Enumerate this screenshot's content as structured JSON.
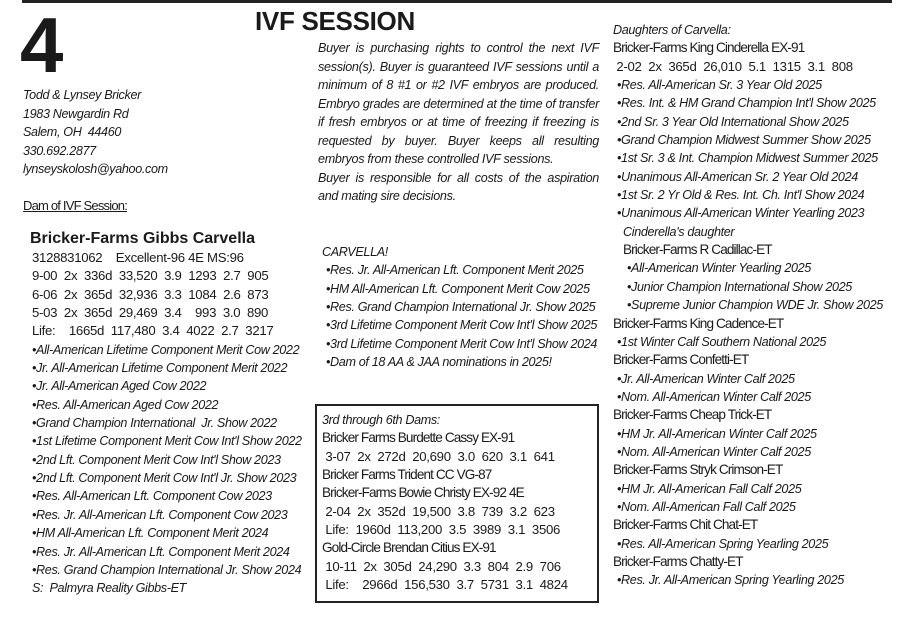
{
  "lot_number": "4",
  "title": "IVF SESSION",
  "consignor": {
    "lines": [
      "Todd & Lynsey Bricker",
      "1983 Newgardin Rd",
      "Salem, OH  44460",
      "330.692.2877",
      "lynseyskolosh@yahoo.com"
    ]
  },
  "dam_header": "Dam of IVF Session:",
  "dam": {
    "name": "Bricker-Farms Gibbs Carvella",
    "lines": [
      {
        "t": "3128831062    Excellent-96 4E MS:96",
        "c": "rec i1"
      },
      {
        "t": "9-00  2x  336d  33,520  3.9  1293  2.7  905",
        "c": "rec i1"
      },
      {
        "t": "6-06  2x  365d  32,936  3.3  1084  2.6  873",
        "c": "rec i1"
      },
      {
        "t": "5-03  2x  365d  29,469  3.4    993  3.0  890",
        "c": "rec i1"
      },
      {
        "t": "Life:    1665d  117,480  3.4  4022  2.7  3217",
        "c": "rec i1"
      },
      {
        "t": "•All-American Lifetime Component Merit Cow 2022",
        "c": "it i1"
      },
      {
        "t": "•Jr. All-American Lifetime Component Merit 2022",
        "c": "it i1"
      },
      {
        "t": "•Jr. All-American Aged Cow 2022",
        "c": "it i1"
      },
      {
        "t": "•Res. All-American Aged Cow 2022",
        "c": "it i1"
      },
      {
        "t": "•Grand Champion International  Jr. Show 2022",
        "c": "it i1"
      },
      {
        "t": "•1st Lifetime Component Merit Cow Int'l Show 2022",
        "c": "it i1"
      },
      {
        "t": "•2nd Lft. Component Merit Cow Int'l Show 2023",
        "c": "it i1"
      },
      {
        "t": "•2nd Lft. Component Merit Cow Int'l Jr. Show 2023",
        "c": "it i1"
      },
      {
        "t": "•Res. All-American Lft. Component Cow 2023",
        "c": "it i1"
      },
      {
        "t": "•Res. Jr. All-American Lft. Component Cow 2023",
        "c": "it i1"
      },
      {
        "t": "•HM All-American Lft. Component Merit 2024",
        "c": "it i1"
      },
      {
        "t": "•Res. Jr. All-American Lft. Component Merit 2024",
        "c": "it i1"
      },
      {
        "t": "•Res. Grand Champion International Jr. Show 2024",
        "c": "it i1"
      },
      {
        "t": "S:  Palmyra Reality Gibbs-ET",
        "c": "it i1"
      }
    ]
  },
  "terms": [
    "Buyer is purchasing rights to control the next IVF session(s). Buyer is guaranteed IVF sessions until a minimum of 8 #1 or #2 IVF embryos are produced. Embryo grades are determined at the time of transfer if fresh embryos or at time of freezing if freezing is requested by buyer. Buyer keeps all resulting embryos from these controlled IVF sessions.",
    "Buyer is responsible for all costs of the aspiration and mating sire decisions."
  ],
  "carvella": [
    {
      "t": "CARVELLA!",
      "c": "it"
    },
    {
      "t": "•Res. Jr. All-American Lft. Component Merit 2025",
      "c": "it i1"
    },
    {
      "t": "•HM All-American Lft. Component Merit Cow 2025",
      "c": "it i1"
    },
    {
      "t": "•Res. Grand Champion International Jr. Show 2025",
      "c": "it i1"
    },
    {
      "t": "•3rd Lifetime Component Merit Cow Int'l Show 2025",
      "c": "it i1"
    },
    {
      "t": "•3rd Lifetime Component Merit Cow Int'l Show 2024",
      "c": "it i1"
    },
    {
      "t": "•Dam of 18 AA & JAA nominations in 2025!",
      "c": "it i1"
    }
  ],
  "dams_box": [
    {
      "t": "3rd through 6th Dams:",
      "c": "it"
    },
    {
      "t": "Bricker Farms Burdette Cassy EX-91",
      "c": "nm"
    },
    {
      "t": " 3-07  2x  272d  20,690  3.0  620  3.1  641",
      "c": "rec"
    },
    {
      "t": "Bricker Farms Trident CC VG-87",
      "c": "nm"
    },
    {
      "t": "Bricker-Farms Bowie Christy EX-92 4E",
      "c": "nm"
    },
    {
      "t": " 2-04  2x  352d  19,500  3.8  739  3.2  623",
      "c": "rec"
    },
    {
      "t": " Life:  1960d  113,200  3.5  3989  3.1  3506",
      "c": "rec"
    },
    {
      "t": "Gold-Circle Brendan Citius EX-91",
      "c": "nm"
    },
    {
      "t": " 10-11  2x  305d  24,290  3.3  804  2.9  706",
      "c": "rec"
    },
    {
      "t": " Life:    2966d  156,530  3.7  5731  3.1  4824",
      "c": "rec"
    }
  ],
  "daughters": [
    {
      "t": "Daughters of Carvella:",
      "c": "it"
    },
    {
      "t": "Bricker-Farms King Cinderella EX-91",
      "c": "nm"
    },
    {
      "t": " 2-02  2x  365d  26,010  5.1  1315  3.1  808",
      "c": "rec"
    },
    {
      "t": "•Res. All-American Sr. 3 Year Old 2025",
      "c": "it i1"
    },
    {
      "t": "•Res. Int. & HM Grand Champion Int'l Show 2025",
      "c": "it i1"
    },
    {
      "t": "•2nd Sr. 3 Year Old International Show 2025",
      "c": "it i1"
    },
    {
      "t": "•Grand Champion Midwest Summer Show 2025",
      "c": "it i1"
    },
    {
      "t": "•1st Sr. 3 & Int. Champion Midwest Summer 2025",
      "c": "it i1"
    },
    {
      "t": "•Unanimous All-American Sr. 2 Year Old 2024",
      "c": "it i1"
    },
    {
      "t": "•1st Sr. 2 Yr Old & Res. Int. Ch. Int'l Show 2024",
      "c": "it i1"
    },
    {
      "t": "•Unanimous All-American Winter Yearling 2023",
      "c": "it i1"
    },
    {
      "t": "Cinderella's daughter",
      "c": "it i2"
    },
    {
      "t": "Bricker-Farms R Cadillac-ET",
      "c": "nm i2"
    },
    {
      "t": "•All-American Winter Yearling 2025",
      "c": "it i3"
    },
    {
      "t": "•Junior Champion International Show 2025",
      "c": "it i3"
    },
    {
      "t": "•Supreme Junior Champion WDE Jr. Show 2025",
      "c": "it i3"
    },
    {
      "t": "Bricker-Farms King Cadence-ET",
      "c": "nm"
    },
    {
      "t": "•1st Winter Calf Southern National 2025",
      "c": "it i1"
    },
    {
      "t": "Bricker-Farms Confetti-ET",
      "c": "nm"
    },
    {
      "t": "•Jr. All-American Winter Calf 2025",
      "c": "it i1"
    },
    {
      "t": "•Nom. All-American Winter Calf 2025",
      "c": "it i1"
    },
    {
      "t": "Bricker-Farms Cheap Trick-ET",
      "c": "nm"
    },
    {
      "t": "•HM Jr. All-American Winter Calf 2025",
      "c": "it i1"
    },
    {
      "t": "•Nom. All-American Winter Calf 2025",
      "c": "it i1"
    },
    {
      "t": "Bricker-Farms Stryk Crimson-ET",
      "c": "nm"
    },
    {
      "t": "•HM Jr. All-American Fall Calf 2025",
      "c": "it i1"
    },
    {
      "t": "•Nom. All-American Fall Calf 2025",
      "c": "it i1"
    },
    {
      "t": "Bricker-Farms Chit Chat-ET",
      "c": "nm"
    },
    {
      "t": "•Res. All-American Spring Yearling 2025",
      "c": "it i1"
    },
    {
      "t": "Bricker-Farms Chatty-ET",
      "c": "nm"
    },
    {
      "t": "•Res. Jr. All-American Spring Yearling 2025",
      "c": "it i1"
    }
  ]
}
